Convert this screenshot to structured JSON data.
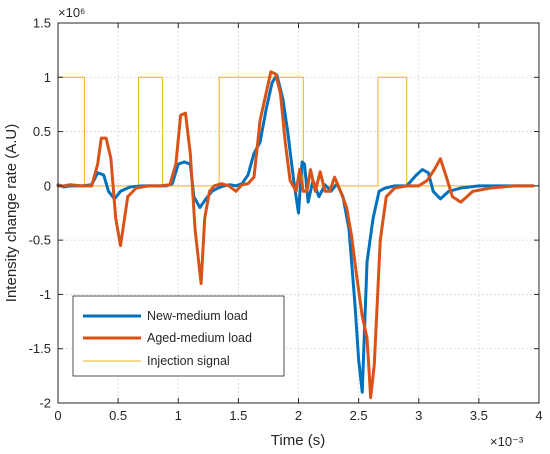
{
  "chart_data": {
    "type": "line",
    "xlabel": "Time (s)",
    "ylabel": "Intensity change rate (A.U)",
    "x_exponent": "×10⁻³",
    "y_exponent": "×10⁶",
    "xlim": [
      0,
      4
    ],
    "ylim": [
      -2,
      1.5
    ],
    "xticks": [
      0,
      0.5,
      1,
      1.5,
      2,
      2.5,
      3,
      3.5,
      4
    ],
    "yticks": [
      -2,
      -1.5,
      -1,
      -0.5,
      0,
      0.5,
      1,
      1.5
    ],
    "xtick_labels": [
      "0",
      "0.5",
      "1",
      "1.5",
      "2",
      "2.5",
      "3",
      "3.5",
      "4"
    ],
    "ytick_labels": [
      "-2",
      "-1.5",
      "-1",
      "-0.5",
      "0",
      "0.5",
      "1",
      "1.5"
    ],
    "grid": true,
    "legend_position": "bottom-left",
    "series": [
      {
        "name": "New-medium load",
        "color": "#0072BD",
        "x": [
          0.0,
          0.05,
          0.1,
          0.2,
          0.28,
          0.33,
          0.38,
          0.42,
          0.47,
          0.52,
          0.6,
          0.7,
          0.8,
          0.9,
          0.95,
          1.0,
          1.05,
          1.1,
          1.13,
          1.18,
          1.23,
          1.28,
          1.33,
          1.38,
          1.43,
          1.48,
          1.53,
          1.58,
          1.63,
          1.68,
          1.73,
          1.78,
          1.82,
          1.87,
          1.91,
          1.96,
          2.0,
          2.03,
          2.05,
          2.08,
          2.12,
          2.17,
          2.22,
          2.27,
          2.32,
          2.37,
          2.42,
          2.47,
          2.5,
          2.53,
          2.57,
          2.62,
          2.67,
          2.72,
          2.8,
          2.9,
          2.98,
          3.03,
          3.08,
          3.12,
          3.18,
          3.25,
          3.35,
          3.5,
          3.7,
          3.95
        ],
        "y": [
          0.01,
          -0.01,
          0.0,
          0.0,
          0.01,
          0.12,
          0.1,
          -0.05,
          -0.12,
          -0.05,
          -0.01,
          0.0,
          0.0,
          0.0,
          0.02,
          0.2,
          0.22,
          0.2,
          -0.1,
          -0.2,
          -0.12,
          -0.05,
          -0.02,
          0.0,
          0.01,
          0.0,
          0.02,
          0.1,
          0.3,
          0.4,
          0.7,
          0.95,
          1.02,
          0.8,
          0.5,
          0.05,
          -0.25,
          0.22,
          0.2,
          -0.15,
          0.05,
          -0.1,
          0.01,
          -0.05,
          0.02,
          -0.1,
          -0.4,
          -1.1,
          -1.6,
          -1.9,
          -0.7,
          -0.3,
          -0.05,
          -0.02,
          0.0,
          0.0,
          0.1,
          0.15,
          0.12,
          -0.05,
          -0.12,
          -0.05,
          -0.02,
          0.0,
          0.0,
          0.0
        ]
      },
      {
        "name": "Aged-medium load",
        "color": "#D95319",
        "x": [
          0.0,
          0.05,
          0.1,
          0.2,
          0.28,
          0.33,
          0.36,
          0.4,
          0.44,
          0.48,
          0.52,
          0.58,
          0.65,
          0.75,
          0.85,
          0.93,
          0.98,
          1.02,
          1.06,
          1.1,
          1.14,
          1.19,
          1.22,
          1.26,
          1.3,
          1.36,
          1.42,
          1.48,
          1.53,
          1.58,
          1.63,
          1.68,
          1.73,
          1.77,
          1.81,
          1.85,
          1.89,
          1.93,
          1.98,
          2.01,
          2.04,
          2.07,
          2.1,
          2.14,
          2.18,
          2.22,
          2.26,
          2.3,
          2.35,
          2.4,
          2.44,
          2.48,
          2.53,
          2.57,
          2.6,
          2.63,
          2.68,
          2.73,
          2.8,
          2.9,
          3.0,
          3.07,
          3.13,
          3.18,
          3.23,
          3.28,
          3.35,
          3.45,
          3.6,
          3.8,
          3.95
        ],
        "y": [
          0.0,
          0.0,
          0.01,
          0.0,
          0.0,
          0.2,
          0.44,
          0.44,
          0.25,
          -0.3,
          -0.55,
          -0.1,
          -0.02,
          0.0,
          0.0,
          0.01,
          0.2,
          0.65,
          0.67,
          0.3,
          -0.4,
          -0.9,
          -0.3,
          -0.05,
          0.0,
          0.02,
          0.0,
          -0.05,
          0.01,
          0.02,
          0.08,
          0.6,
          0.85,
          1.05,
          1.03,
          0.85,
          0.4,
          0.05,
          -0.05,
          0.15,
          -0.05,
          -0.05,
          0.15,
          -0.05,
          0.13,
          -0.05,
          -0.05,
          0.08,
          -0.05,
          -0.2,
          -0.45,
          -0.8,
          -1.2,
          -1.4,
          -1.95,
          -1.65,
          -0.5,
          -0.1,
          -0.02,
          0.0,
          0.0,
          0.05,
          0.15,
          0.25,
          0.08,
          -0.1,
          -0.15,
          -0.05,
          -0.02,
          0.0,
          0.0
        ]
      },
      {
        "name": "Injection signal",
        "color": "#EDB120",
        "x": [
          0.0,
          0.0,
          0.22,
          0.22,
          0.67,
          0.67,
          0.87,
          0.87,
          1.34,
          1.34,
          2.04,
          2.04,
          2.66,
          2.66,
          2.9,
          2.9,
          4.0
        ],
        "y": [
          0,
          1,
          1,
          0,
          0,
          1,
          1,
          0,
          0,
          1,
          1,
          0,
          0,
          1,
          1,
          0,
          0
        ]
      }
    ]
  }
}
